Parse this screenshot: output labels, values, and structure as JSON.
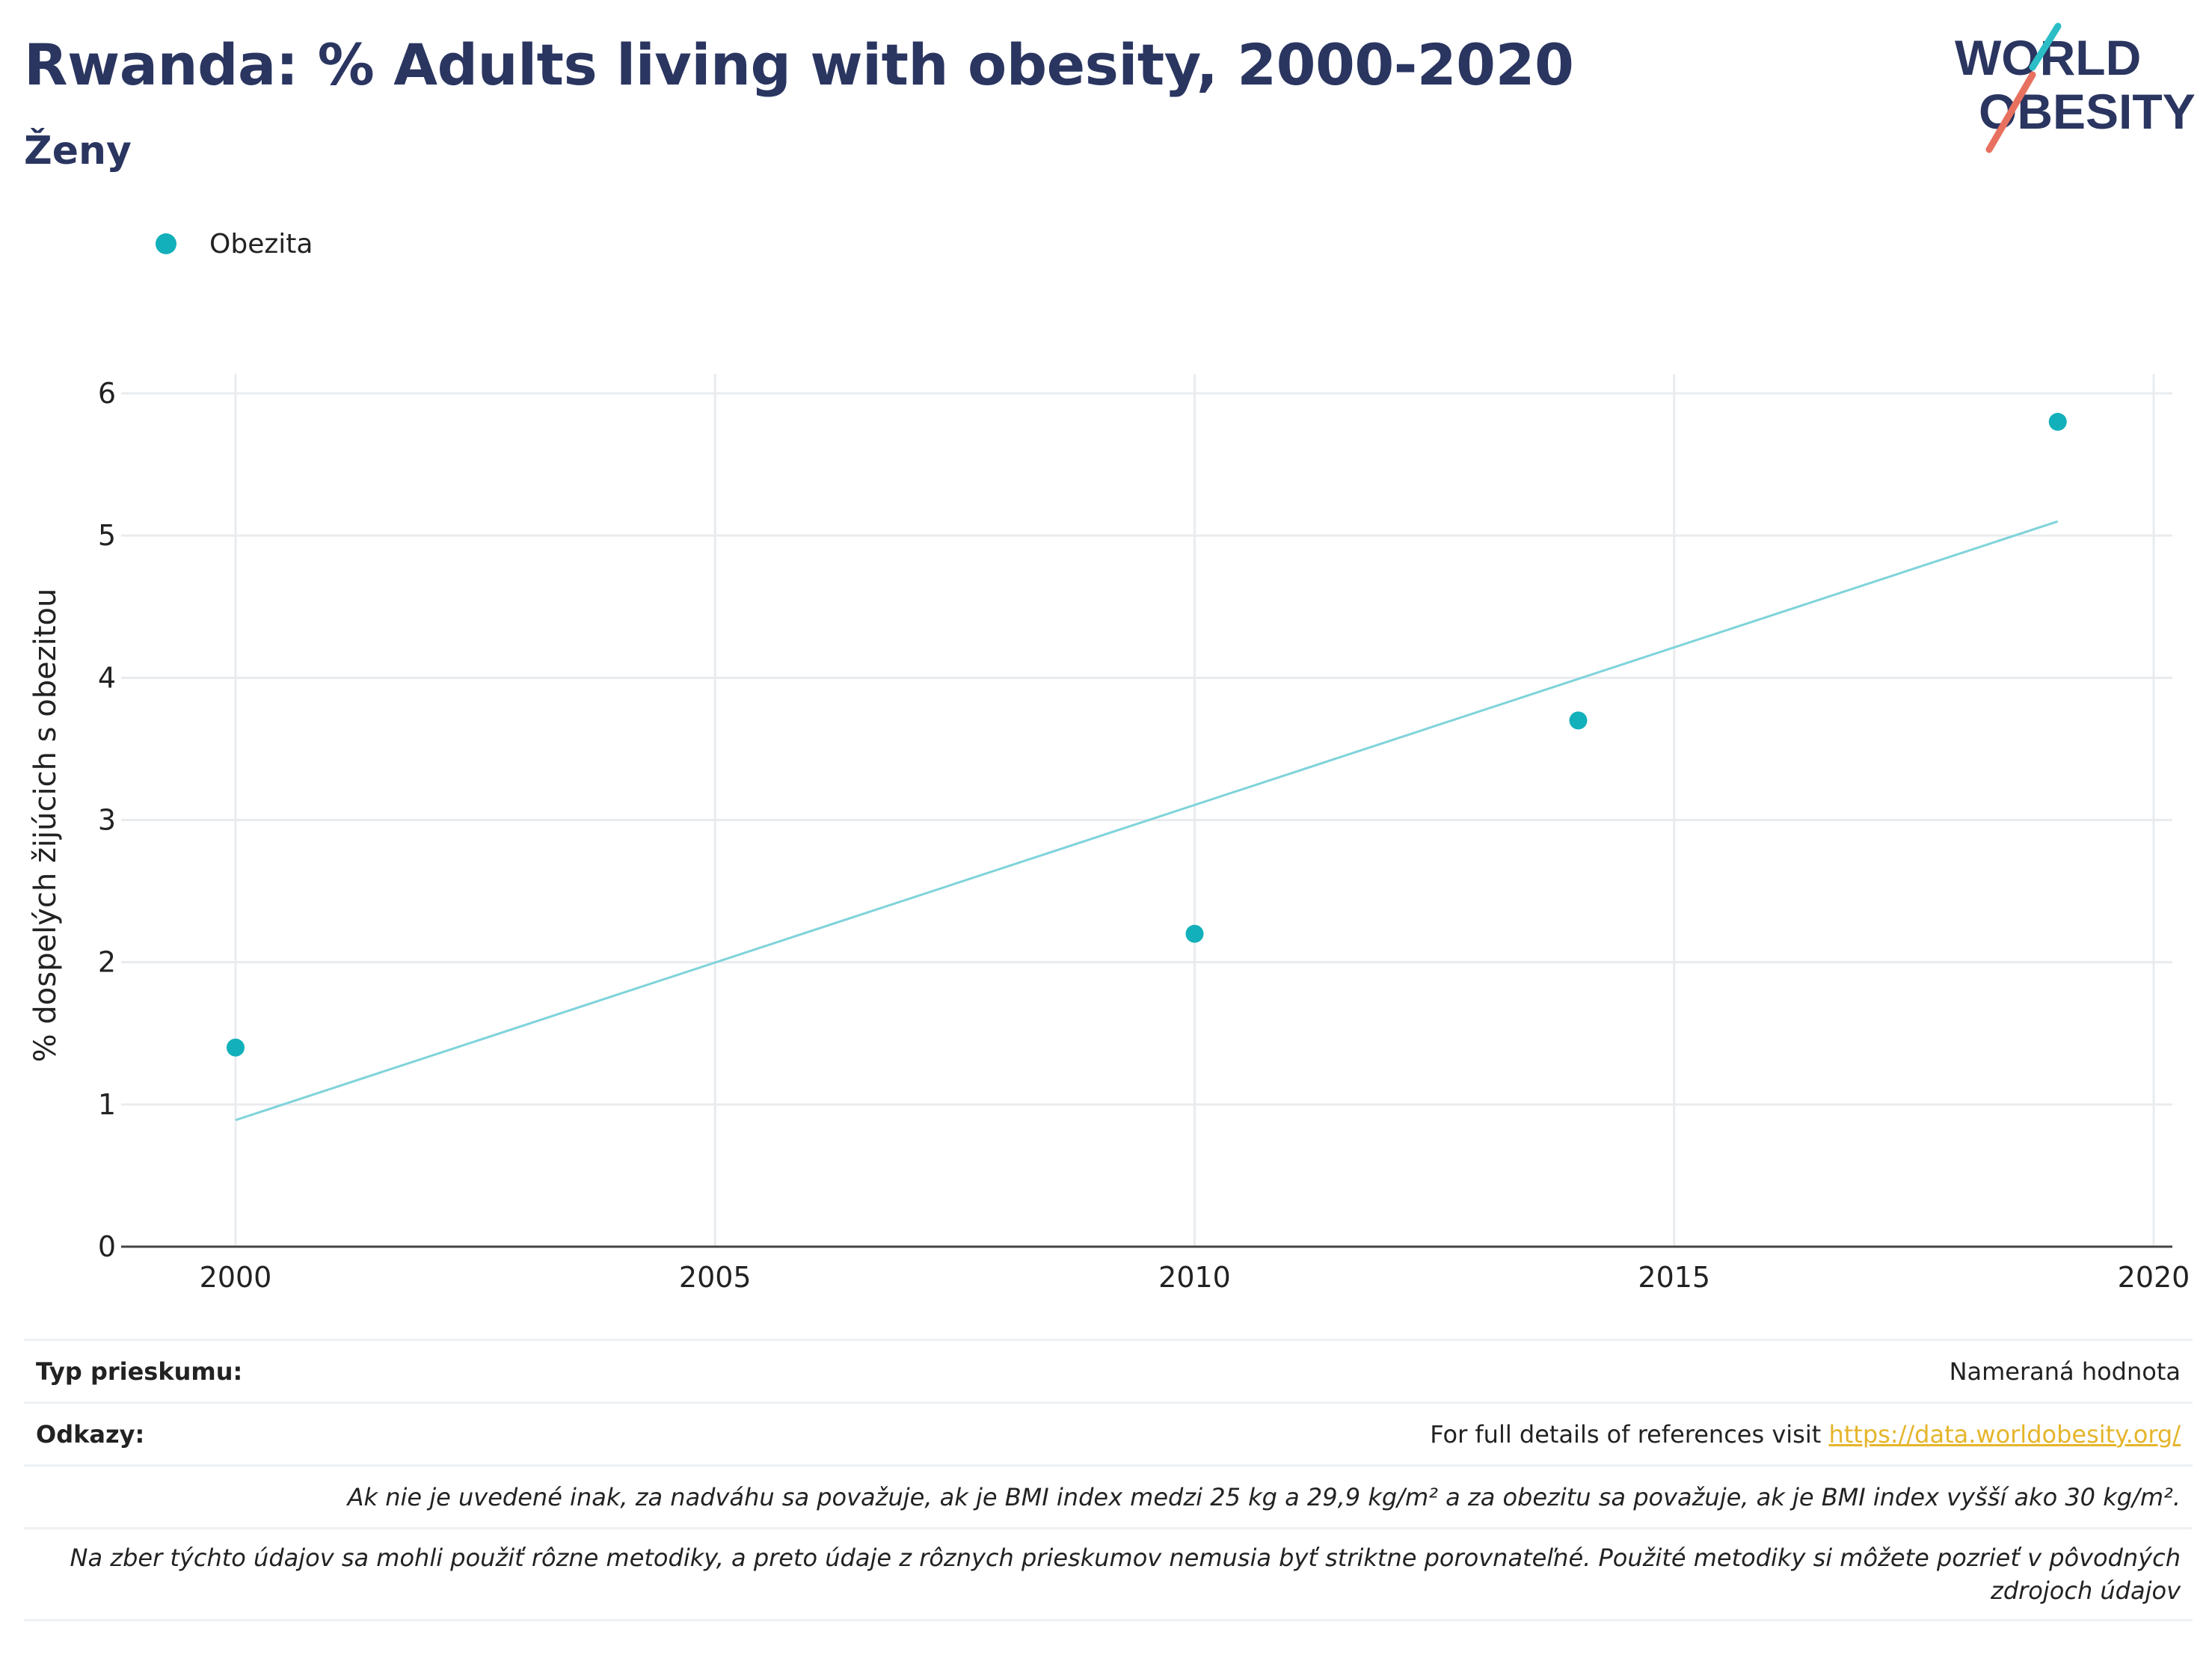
{
  "header": {
    "title": "Rwanda: % Adults living with obesity, 2000-2020",
    "subtitle": "Ženy"
  },
  "logo": {
    "line1": "WORLD",
    "line2": "OBESITY",
    "text_color": "#2a3560",
    "accent_teal": "#2bbec6",
    "accent_coral": "#e8705f"
  },
  "legend": {
    "items": [
      {
        "label": "Obezita",
        "color": "#12b0ba"
      }
    ]
  },
  "chart_data": {
    "type": "scatter",
    "title": "Rwanda: % Adults living with obesity, 2000-2020",
    "subtitle": "Ženy",
    "xlabel": "",
    "ylabel": "% dospelých žijúcich s obezitou",
    "xlim": [
      1999,
      2020.3
    ],
    "ylim": [
      0,
      6.2
    ],
    "xticks": [
      2000,
      2005,
      2010,
      2015,
      2020
    ],
    "yticks": [
      0,
      1,
      2,
      3,
      4,
      5,
      6
    ],
    "grid": true,
    "legend_position": "top-left",
    "series": [
      {
        "name": "Obezita",
        "color": "#12b0ba",
        "x": [
          2000,
          2010,
          2014,
          2019
        ],
        "y": [
          1.4,
          2.2,
          3.7,
          5.8
        ]
      }
    ],
    "trendline": {
      "color": "#7fd3da",
      "x": [
        2000,
        2019
      ],
      "y": [
        0.89,
        5.1
      ]
    }
  },
  "footer": {
    "survey_label": "Typ prieskumu:",
    "survey_value": "Nameraná hodnota",
    "refs_label": "Odkazy:",
    "refs_text": "For full details of references visit ",
    "refs_link": "https://data.worldobesity.org/",
    "note1": "Ak nie je uvedené inak, za nadváhu sa považuje, ak je BMI index medzi 25 kg a 29,9 kg/m² a za obezitu sa považuje, ak je BMI index vyšší ako 30 kg/m².",
    "note2": "Na zber týchto údajov sa mohli použiť rôzne metodiky, a preto údaje z rôznych prieskumov nemusia byť striktne porovnateľné. Použité metodiky si môžete pozrieť v pôvodných zdrojoch údajov"
  }
}
